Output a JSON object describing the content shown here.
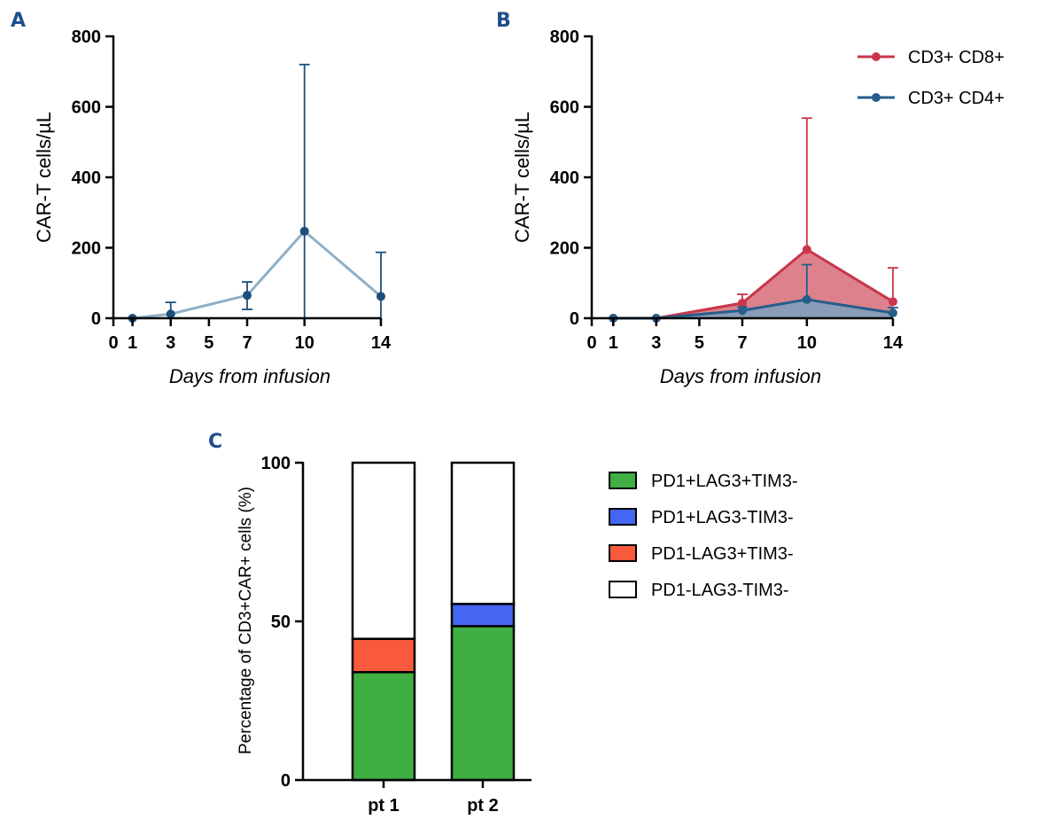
{
  "chart_data": [
    {
      "panel": "A",
      "type": "line",
      "ylabel": "CAR-T cells/µL",
      "xlabel": "Days from infusion",
      "ylim": [
        0,
        800
      ],
      "xlim": [
        0,
        14
      ],
      "yticks": [
        0,
        200,
        400,
        600,
        800
      ],
      "xticks": [
        0,
        1,
        3,
        5,
        7,
        10,
        14
      ],
      "series": [
        {
          "name": "CAR-T cells",
          "color": "#8fb0c6",
          "marker_color": "#1b4f7c",
          "x": [
            1,
            3,
            7,
            10,
            14
          ],
          "values": [
            0,
            12,
            65,
            247,
            62
          ],
          "err_low": [
            0,
            0,
            25,
            0,
            0
          ],
          "err_high": [
            0,
            45,
            103,
            720,
            187
          ]
        }
      ]
    },
    {
      "panel": "B",
      "type": "area",
      "ylabel": "CAR-T cells/µL",
      "xlabel": "Days from infusion",
      "ylim": [
        0,
        800
      ],
      "xlim": [
        0,
        14
      ],
      "yticks": [
        0,
        200,
        400,
        600,
        800
      ],
      "xticks": [
        0,
        1,
        3,
        5,
        7,
        10,
        14
      ],
      "series": [
        {
          "name": "CD3+ CD8+",
          "color": "#c8364b",
          "fill": "#d4636f",
          "x": [
            1,
            3,
            7,
            10,
            14
          ],
          "values": [
            0,
            0,
            43,
            195,
            47
          ],
          "err_high": [
            0,
            0,
            68,
            568,
            143
          ]
        },
        {
          "name": "CD3+ CD4+",
          "color": "#275d8c",
          "fill": "#7aa1bf",
          "x": [
            1,
            3,
            7,
            10,
            14
          ],
          "values": [
            0,
            0,
            22,
            53,
            15
          ],
          "err_high": [
            0,
            0,
            32,
            152,
            30
          ]
        }
      ]
    },
    {
      "panel": "C",
      "type": "bar",
      "stacked": true,
      "ylabel": "Percentage of CD3+CAR+ cells (%)",
      "ylim": [
        0,
        100
      ],
      "yticks": [
        0,
        50,
        100
      ],
      "categories": [
        "pt 1",
        "pt 2"
      ],
      "series": [
        {
          "name": "PD1+LAG3+TIM3-",
          "color": "#3fae43",
          "values": [
            34,
            48.5
          ]
        },
        {
          "name": "PD1+LAG3-TIM3-",
          "color": "#4566f2",
          "values": [
            0,
            7
          ]
        },
        {
          "name": "PD1-LAG3+TIM3-",
          "color": "#fa5a3c",
          "values": [
            10.5,
            0
          ]
        },
        {
          "name": "PD1-LAG3-TIM3-",
          "color": "#ffffff",
          "values": [
            55.5,
            44.5
          ]
        }
      ]
    }
  ]
}
